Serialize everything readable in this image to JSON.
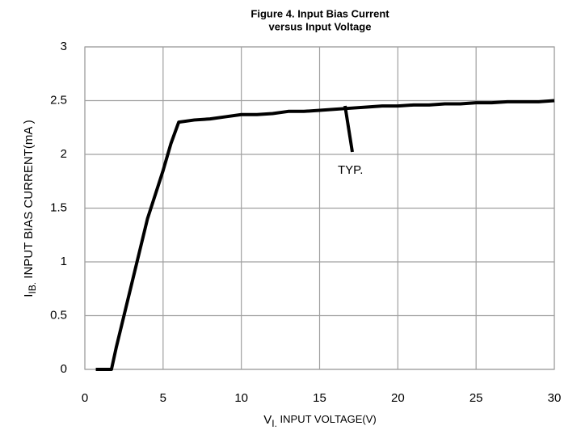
{
  "chart_data": {
    "type": "line",
    "title": [
      "Figure 4. Input Bias Current",
      "versus Input Voltage"
    ],
    "xlabel": {
      "symbol": "V",
      "subscript": "I.",
      "text": " INPUT VOLTAGE(V)"
    },
    "ylabel": {
      "symbol": "I",
      "subscript": "IB.",
      "text": " INPUT  BIAS CURRENT(mA )"
    },
    "annotation": "TYP.",
    "x": [
      0.7,
      1.6,
      1.7,
      2,
      2.5,
      3,
      3.5,
      4,
      5,
      5.5,
      6,
      7,
      8,
      9,
      10,
      11,
      12,
      13,
      14,
      15,
      16,
      17,
      18,
      19,
      20,
      21,
      22,
      23,
      24,
      25,
      26,
      27,
      28,
      29,
      30
    ],
    "series": [
      {
        "name": "TYP.",
        "color": "#000000",
        "values": [
          0,
          0,
          0,
          0.2,
          0.5,
          0.8,
          1.1,
          1.4,
          1.85,
          2.1,
          2.3,
          2.32,
          2.33,
          2.35,
          2.37,
          2.37,
          2.38,
          2.4,
          2.4,
          2.41,
          2.42,
          2.43,
          2.44,
          2.45,
          2.45,
          2.46,
          2.46,
          2.47,
          2.47,
          2.48,
          2.48,
          2.49,
          2.49,
          2.49,
          2.5
        ]
      }
    ],
    "xlim": [
      0,
      30
    ],
    "xticks": [
      0,
      5,
      10,
      15,
      20,
      25,
      30
    ],
    "ylim": [
      0,
      3
    ],
    "yticks": [
      0,
      {
        "value": 0.5,
        "label": "0.5"
      },
      1,
      {
        "value": 1.5,
        "label": "1.5"
      },
      2,
      {
        "value": 2.5,
        "label": "2.5"
      },
      3
    ],
    "grid": true
  }
}
